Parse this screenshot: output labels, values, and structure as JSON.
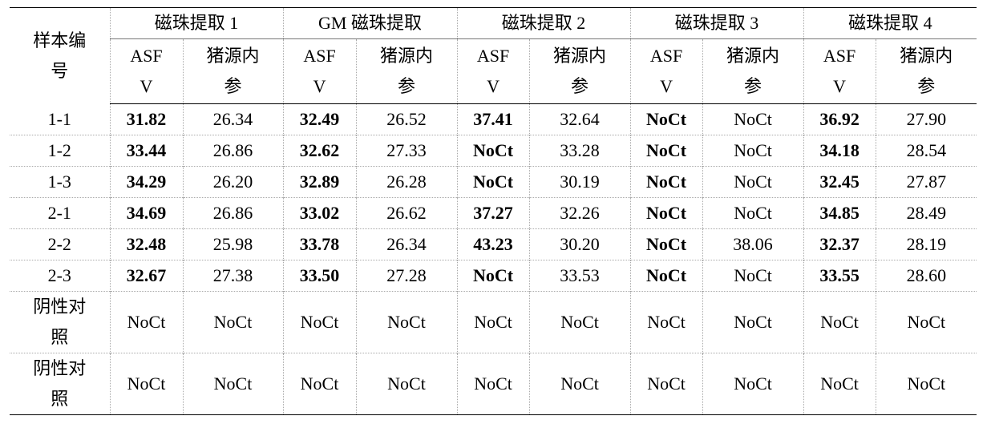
{
  "table": {
    "header": {
      "sample": "样本编号",
      "groups": [
        "磁珠提取 1",
        "GM 磁珠提取",
        "磁珠提取 2",
        "磁珠提取 3",
        "磁珠提取 4"
      ],
      "subheaders": [
        "ASFV",
        "猪源内参",
        "ASFV",
        "猪源内参",
        "ASFV",
        "猪源内参",
        "ASFV",
        "猪源内参",
        "ASFV",
        "猪源内参"
      ]
    },
    "rows": [
      [
        "1-1",
        "31.82",
        "26.34",
        "32.49",
        "26.52",
        "37.41",
        "32.64",
        "NoCt",
        "NoCt",
        "36.92",
        "27.90"
      ],
      [
        "1-2",
        "33.44",
        "26.86",
        "32.62",
        "27.33",
        "NoCt",
        "33.28",
        "NoCt",
        "NoCt",
        "34.18",
        "28.54"
      ],
      [
        "1-3",
        "34.29",
        "26.20",
        "32.89",
        "26.28",
        "NoCt",
        "30.19",
        "NoCt",
        "NoCt",
        "32.45",
        "27.87"
      ],
      [
        "2-1",
        "34.69",
        "26.86",
        "33.02",
        "26.62",
        "37.27",
        "32.26",
        "NoCt",
        "NoCt",
        "34.85",
        "28.49"
      ],
      [
        "2-2",
        "32.48",
        "25.98",
        "33.78",
        "26.34",
        "43.23",
        "30.20",
        "NoCt",
        "38.06",
        "32.37",
        "28.19"
      ],
      [
        "2-3",
        "32.67",
        "27.38",
        "33.50",
        "27.28",
        "NoCt",
        "33.53",
        "NoCt",
        "NoCt",
        "33.55",
        "28.60"
      ],
      [
        "阴性对照",
        "NoCt",
        "NoCt",
        "NoCt",
        "NoCt",
        "NoCt",
        "NoCt",
        "NoCt",
        "NoCt",
        "NoCt",
        "NoCt"
      ],
      [
        "阴性对照",
        "NoCt",
        "NoCt",
        "NoCt",
        "NoCt",
        "NoCt",
        "NoCt",
        "NoCt",
        "NoCt",
        "NoCt",
        "NoCt"
      ]
    ]
  }
}
